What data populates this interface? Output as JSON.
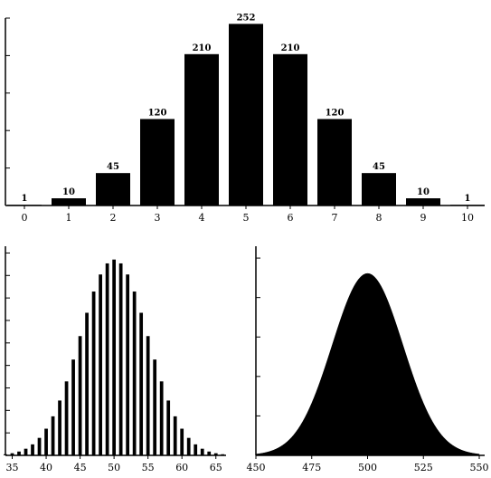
{
  "chart_data": [
    {
      "type": "bar",
      "title": "",
      "xlabel": "",
      "ylabel": "",
      "categories": [
        "0",
        "1",
        "2",
        "3",
        "4",
        "5",
        "6",
        "7",
        "8",
        "9",
        "10"
      ],
      "values": [
        1,
        10,
        45,
        120,
        210,
        252,
        210,
        120,
        45,
        10,
        1
      ],
      "data_labels": [
        "1",
        "10",
        "45",
        "120",
        "210",
        "252",
        "210",
        "120",
        "45",
        "10",
        "1"
      ],
      "ylim": [
        0,
        260
      ],
      "ytick_count": 5,
      "grid": false,
      "bar_color": "#000000"
    },
    {
      "type": "bar",
      "title": "",
      "xlabel": "",
      "ylabel": "",
      "n": 100,
      "x_range": [
        34,
        66
      ],
      "xlim": [
        34,
        66.5
      ],
      "xticks": [
        "35",
        "40",
        "45",
        "50",
        "55",
        "60",
        "65"
      ],
      "xtick_values": [
        35,
        40,
        45,
        50,
        55,
        60,
        65
      ],
      "ylim": [
        0,
        0.085
      ],
      "ytick_count": 9,
      "grid": false,
      "bar_color": "#000000"
    },
    {
      "type": "area",
      "title": "",
      "xlabel": "",
      "ylabel": "",
      "n": 1000,
      "x_range": [
        450,
        550
      ],
      "xlim": [
        450,
        550
      ],
      "xticks": [
        "450",
        "475",
        "500",
        "525",
        "550"
      ],
      "xtick_values": [
        450,
        475,
        500,
        525,
        550
      ],
      "ylim": [
        0,
        0.029
      ],
      "ytick_count": 5,
      "grid": false,
      "fill_color": "#000000"
    }
  ]
}
